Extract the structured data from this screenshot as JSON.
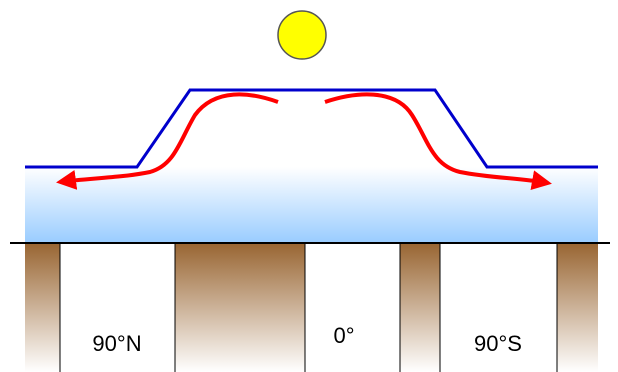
{
  "labels": [
    "90°N",
    "0°",
    "90°S"
  ]
}
